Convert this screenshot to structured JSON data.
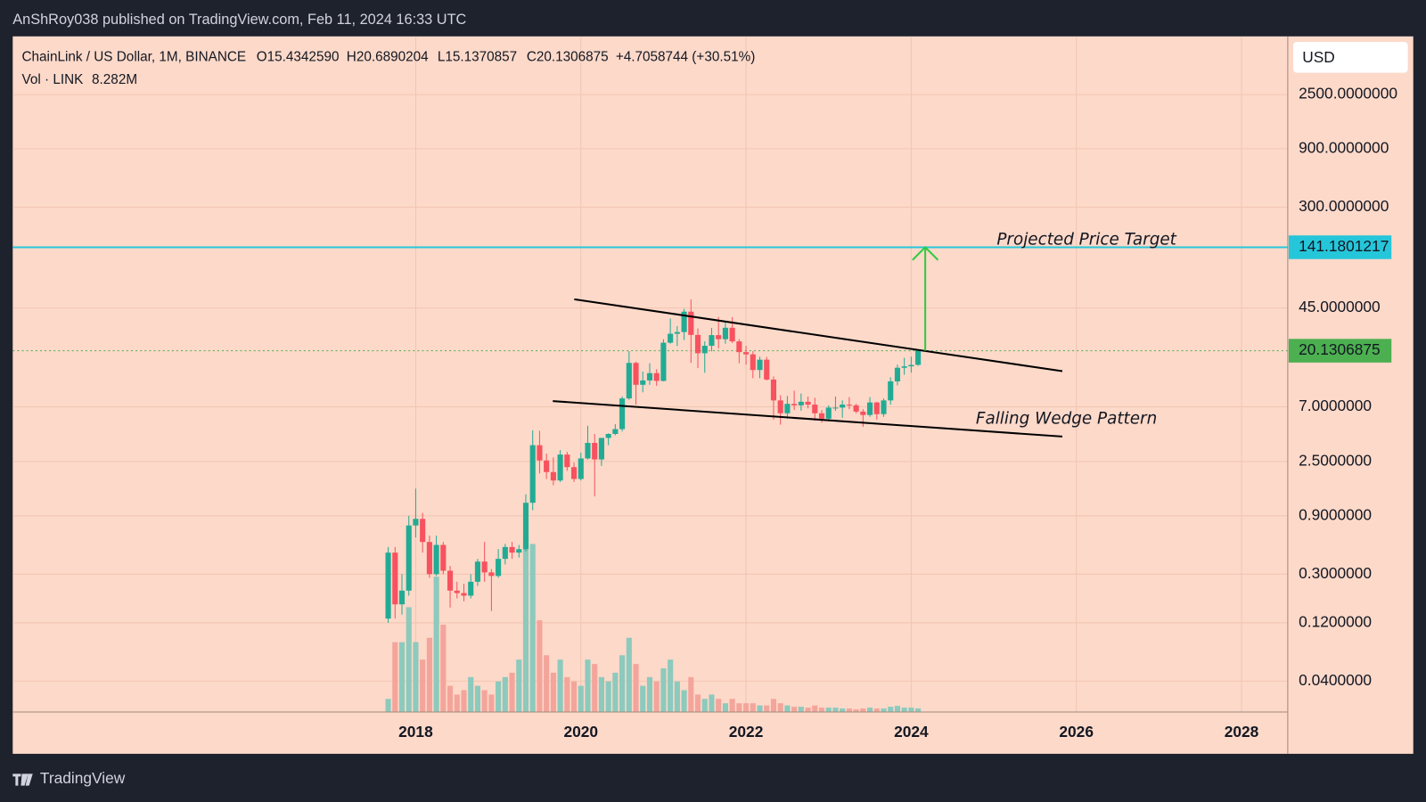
{
  "top_bar": {
    "text": "AnShRoy038 published on TradingView.com, Feb 11, 2024 16:33 UTC"
  },
  "bottom_bar": {
    "brand": "TradingView"
  },
  "header": {
    "symbol": "ChainLink / US Dollar, 1M, BINANCE",
    "open": "O15.4342590",
    "high": "H20.6890204",
    "low": "L15.1370857",
    "close": "C20.1306875",
    "change": "+4.7058744 (+30.51%)",
    "volume_title": "Vol · LINK",
    "volume_value": "8.282M"
  },
  "currency": "USD",
  "chart_data": {
    "type": "candlestick",
    "log_scale": true,
    "grid": true,
    "up_color": "#22ab94",
    "down_color": "#f7525f",
    "volume_up_color": "#8ccabd",
    "volume_down_color": "#f4a59b",
    "x": [
      "2017-09",
      "2017-10",
      "2017-11",
      "2017-12",
      "2018-01",
      "2018-02",
      "2018-03",
      "2018-04",
      "2018-05",
      "2018-06",
      "2018-07",
      "2018-08",
      "2018-09",
      "2018-10",
      "2018-11",
      "2018-12",
      "2019-01",
      "2019-02",
      "2019-03",
      "2019-04",
      "2019-05",
      "2019-06",
      "2019-07",
      "2019-08",
      "2019-09",
      "2019-10",
      "2019-11",
      "2019-12",
      "2020-01",
      "2020-02",
      "2020-03",
      "2020-04",
      "2020-05",
      "2020-06",
      "2020-07",
      "2020-08",
      "2020-09",
      "2020-10",
      "2020-11",
      "2020-12",
      "2021-01",
      "2021-02",
      "2021-03",
      "2021-04",
      "2021-05",
      "2021-06",
      "2021-07",
      "2021-08",
      "2021-09",
      "2021-10",
      "2021-11",
      "2021-12",
      "2022-01",
      "2022-02",
      "2022-03",
      "2022-04",
      "2022-05",
      "2022-06",
      "2022-07",
      "2022-08",
      "2022-09",
      "2022-10",
      "2022-11",
      "2022-12",
      "2023-01",
      "2023-02",
      "2023-03",
      "2023-04",
      "2023-05",
      "2023-06",
      "2023-07",
      "2023-08",
      "2023-09",
      "2023-10",
      "2023-11",
      "2023-12",
      "2024-01",
      "2024-02"
    ],
    "open": [
      0.13,
      0.45,
      0.17,
      0.22,
      0.75,
      0.85,
      0.55,
      0.3,
      0.52,
      0.32,
      0.22,
      0.21,
      0.2,
      0.26,
      0.38,
      0.31,
      0.29,
      0.4,
      0.5,
      0.45,
      0.48,
      1.15,
      3.4,
      2.55,
      2.05,
      1.75,
      2.85,
      2.25,
      1.8,
      2.65,
      3.55,
      2.6,
      3.9,
      4.2,
      4.6,
      8.2,
      16.0,
      10.6,
      11.5,
      13.2,
      11.4,
      23.4,
      27.7,
      28.6,
      42.0,
      27.1,
      19.2,
      22.1,
      27.0,
      25.0,
      31.0,
      24.0,
      19.6,
      18.8,
      14.0,
      17.0,
      11.7,
      7.9,
      6.2,
      7.4,
      7.2,
      7.7,
      7.3,
      6.2,
      5.6,
      6.9,
      6.9,
      7.3,
      7.2,
      6.4,
      6.0,
      7.6,
      6.1,
      7.9,
      11.3,
      14.6,
      15.0,
      15.434259
    ],
    "high": [
      0.5,
      0.5,
      0.3,
      0.9,
      1.5,
      0.95,
      0.62,
      0.62,
      0.55,
      0.35,
      0.26,
      0.25,
      0.3,
      0.4,
      0.55,
      0.33,
      0.48,
      0.53,
      0.55,
      0.52,
      1.35,
      4.5,
      4.45,
      2.9,
      2.7,
      3.1,
      3.0,
      2.45,
      2.95,
      4.9,
      4.2,
      3.9,
      4.25,
      5.05,
      8.5,
      20.0,
      16.4,
      13.6,
      15.9,
      14.2,
      25.0,
      36.9,
      32.0,
      44.3,
      52.9,
      30.6,
      24.0,
      30.9,
      38.0,
      35.0,
      37.9,
      25.1,
      22.0,
      20.0,
      18.0,
      17.9,
      12.4,
      8.7,
      8.6,
      9.5,
      9.0,
      8.5,
      8.3,
      6.6,
      7.2,
      8.5,
      7.9,
      8.4,
      7.4,
      6.7,
      8.4,
      7.7,
      8.2,
      12.2,
      15.5,
      17.6,
      18.0,
      20.6890204
    ],
    "low": [
      0.12,
      0.13,
      0.14,
      0.2,
      0.6,
      0.45,
      0.28,
      0.29,
      0.3,
      0.16,
      0.19,
      0.18,
      0.19,
      0.24,
      0.26,
      0.15,
      0.28,
      0.36,
      0.4,
      0.41,
      0.46,
      1.0,
      2.0,
      1.8,
      1.6,
      1.7,
      2.1,
      1.7,
      1.75,
      2.6,
      1.3,
      2.3,
      3.4,
      4.1,
      4.4,
      8.0,
      7.3,
      9.2,
      10.6,
      10.4,
      11.3,
      23.0,
      22.0,
      24.6,
      16.0,
      14.5,
      13.3,
      19.9,
      21.0,
      23.0,
      23.3,
      15.9,
      15.5,
      12.0,
      12.0,
      11.5,
      5.5,
      5.0,
      5.6,
      6.6,
      6.5,
      6.8,
      5.4,
      5.2,
      5.5,
      6.5,
      5.7,
      6.7,
      6.2,
      4.8,
      5.8,
      5.5,
      5.8,
      7.3,
      10.5,
      12.8,
      13.3,
      15.1370857
    ],
    "close": [
      0.45,
      0.17,
      0.22,
      0.75,
      0.85,
      0.55,
      0.3,
      0.52,
      0.32,
      0.22,
      0.21,
      0.2,
      0.26,
      0.38,
      0.31,
      0.29,
      0.4,
      0.5,
      0.45,
      0.48,
      1.15,
      3.4,
      2.55,
      2.05,
      1.75,
      2.85,
      2.25,
      1.8,
      2.65,
      3.55,
      2.6,
      3.9,
      4.2,
      4.6,
      8.2,
      16.0,
      10.6,
      11.5,
      13.2,
      11.4,
      23.4,
      27.7,
      28.6,
      42.0,
      27.1,
      19.2,
      22.1,
      27.0,
      25.0,
      31.0,
      24.0,
      19.6,
      18.8,
      14.0,
      17.0,
      11.7,
      7.9,
      6.2,
      7.4,
      7.2,
      7.7,
      7.3,
      6.2,
      5.6,
      6.9,
      6.9,
      7.3,
      7.2,
      6.4,
      6.0,
      7.6,
      6.1,
      7.9,
      11.3,
      14.6,
      15.0,
      15.4,
      20.1306875
    ],
    "volume": [
      30,
      160,
      160,
      240,
      160,
      120,
      170,
      310,
      200,
      60,
      40,
      50,
      80,
      60,
      50,
      40,
      70,
      80,
      90,
      120,
      400,
      385,
      210,
      130,
      90,
      120,
      80,
      70,
      60,
      120,
      110,
      80,
      70,
      90,
      130,
      170,
      110,
      60,
      80,
      70,
      100,
      120,
      70,
      50,
      80,
      40,
      30,
      40,
      30,
      20,
      30,
      20,
      20,
      20,
      15,
      15,
      30,
      20,
      15,
      12,
      12,
      10,
      15,
      10,
      10,
      10,
      8,
      8,
      6,
      8,
      10,
      8,
      8,
      12,
      14,
      10,
      10,
      8.282
    ],
    "ylim": [
      0.0224,
      7480
    ],
    "yticks": [
      {
        "value": 2500,
        "label": "2500.0000000"
      },
      {
        "value": 900,
        "label": "900.0000000"
      },
      {
        "value": 300,
        "label": "300.0000000"
      },
      {
        "value": 45,
        "label": "45.0000000"
      },
      {
        "value": 7,
        "label": "7.0000000"
      },
      {
        "value": 2.5,
        "label": "2.5000000"
      },
      {
        "value": 0.9,
        "label": "0.9000000"
      },
      {
        "value": 0.3,
        "label": "0.3000000"
      },
      {
        "value": 0.12,
        "label": "0.1200000"
      },
      {
        "value": 0.04,
        "label": "0.0400000"
      }
    ],
    "xlim": [
      2013.12,
      2028.56
    ],
    "xticks": [
      2018,
      2020,
      2022,
      2024,
      2026,
      2028
    ],
    "price_lines": [
      {
        "value": 141.1801217,
        "color": "#26c6da"
      },
      {
        "value": 20.1306875,
        "color": "#4caf50"
      }
    ],
    "trendlines": [
      {
        "points": [
          [
            2019.92,
            53
          ],
          [
            2025.83,
            13.7
          ]
        ],
        "color": "#000000"
      },
      {
        "points": [
          [
            2019.66,
            7.8
          ],
          [
            2025.83,
            4.0
          ]
        ],
        "color": "#000000"
      }
    ],
    "arrow": {
      "from": [
        2024.17,
        20.1306875
      ],
      "to": [
        2024.17,
        141.1801217
      ],
      "color": "#2ecc40"
    },
    "annotations": [
      "Projected Price Target",
      "Falling Wedge Pattern"
    ]
  }
}
